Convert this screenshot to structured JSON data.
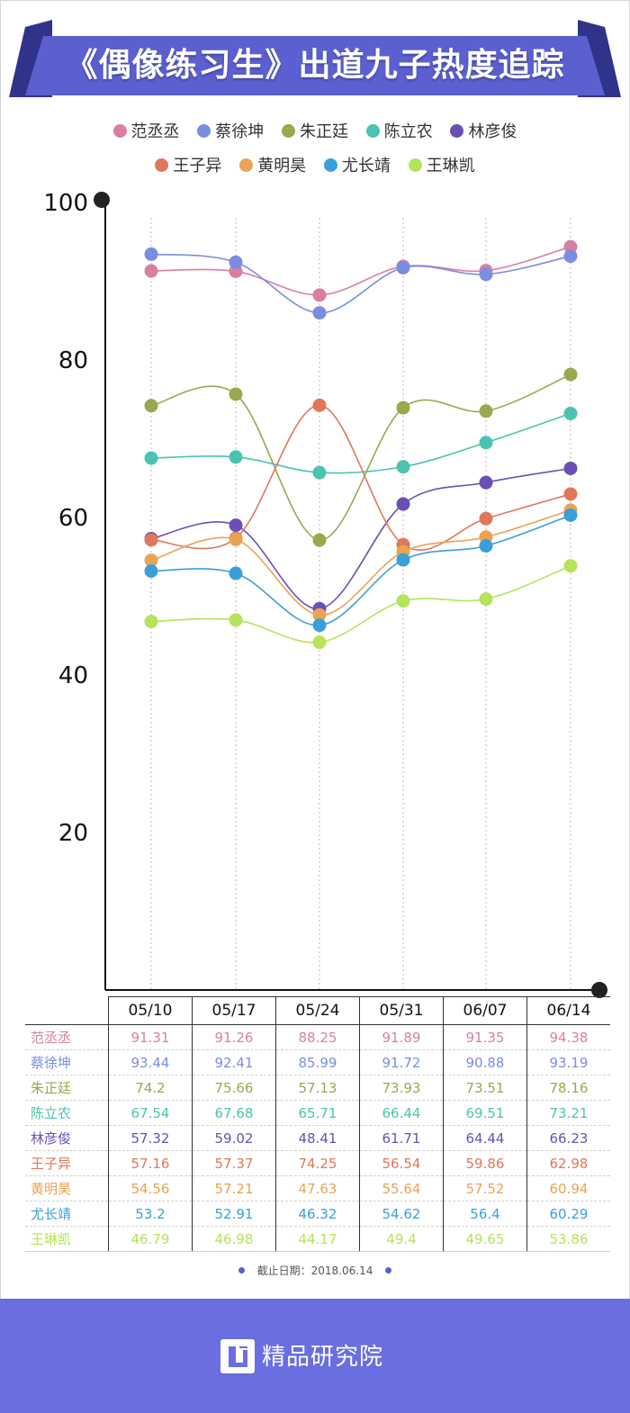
{
  "colors": {
    "banner": "#5b5fcf",
    "banner_dark": "#30338a",
    "footer": "#6a6ee0",
    "axis": "#111111",
    "gridline": "#d9a7c8"
  },
  "header": {
    "title": "《偶像练习生》出道九子热度追踪"
  },
  "footnote": {
    "text": "截止日期：2018.06.14"
  },
  "footer": {
    "brand": "精品研究院",
    "logo_icon": "brand-logo-icon"
  },
  "chart_data": {
    "type": "line",
    "title": "《偶像练习生》出道九子热度追踪",
    "categories": [
      "05/10",
      "05/17",
      "05/24",
      "05/31",
      "06/07",
      "06/14"
    ],
    "y_ticks": [
      20,
      40,
      60,
      80,
      100
    ],
    "ylim": [
      0,
      100
    ],
    "grid": "vertical dotted lines at each category",
    "legend_position": "top",
    "series": [
      {
        "name": "范丞丞",
        "color": "#d97fa3",
        "values": [
          91.31,
          91.26,
          88.25,
          91.89,
          91.35,
          94.38
        ]
      },
      {
        "name": "蔡徐坤",
        "color": "#7b8de0",
        "values": [
          93.44,
          92.41,
          85.99,
          91.72,
          90.88,
          93.19
        ]
      },
      {
        "name": "朱正廷",
        "color": "#9aa84f",
        "values": [
          74.2,
          75.66,
          57.13,
          73.93,
          73.51,
          78.16
        ]
      },
      {
        "name": "陈立农",
        "color": "#4cc3b0",
        "values": [
          67.54,
          67.68,
          65.71,
          66.44,
          69.51,
          73.21
        ]
      },
      {
        "name": "林彦俊",
        "color": "#6b4fb5",
        "values": [
          57.32,
          59.02,
          48.41,
          61.71,
          64.44,
          66.23
        ]
      },
      {
        "name": "王子异",
        "color": "#e0775a",
        "values": [
          57.16,
          57.37,
          74.25,
          56.54,
          59.86,
          62.98
        ]
      },
      {
        "name": "黄明昊",
        "color": "#e8a356",
        "values": [
          54.56,
          57.21,
          47.63,
          55.64,
          57.52,
          60.94
        ]
      },
      {
        "name": "尤长靖",
        "color": "#3a9fd8",
        "values": [
          53.2,
          52.91,
          46.32,
          54.62,
          56.4,
          60.29
        ]
      },
      {
        "name": "王琳凯",
        "color": "#b5e35a",
        "values": [
          46.79,
          46.98,
          44.17,
          49.4,
          49.65,
          53.86
        ]
      }
    ]
  }
}
